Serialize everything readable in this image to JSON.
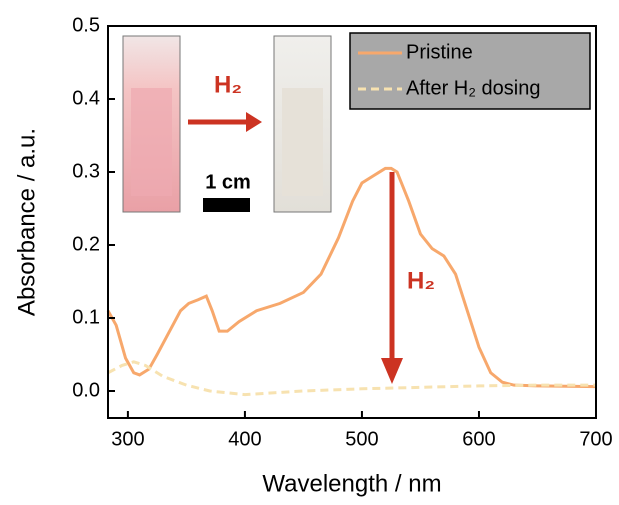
{
  "chart_data": {
    "type": "line",
    "xlabel": "Wavelength / nm",
    "ylabel": "Absorbance / a.u.",
    "xlim": [
      283,
      700
    ],
    "xticks": [
      300,
      400,
      500,
      600,
      700
    ],
    "ylim": [
      -0.037,
      0.5
    ],
    "yticks": [
      {
        "value": 0,
        "label": "0.0"
      },
      {
        "value": 0.1,
        "label": "0.1"
      },
      {
        "value": 0.2,
        "label": "0.2"
      },
      {
        "value": 0.3,
        "label": "0.3"
      },
      {
        "value": 0.4,
        "label": "0.4"
      },
      {
        "value": 0.5,
        "label": "0.5"
      }
    ],
    "legend": "upper right",
    "annotations": [
      "H₂",
      "1 cm",
      "H₂"
    ],
    "series": [
      {
        "name": "Pristine",
        "color": "#f7a86c",
        "style": "solid",
        "x": [
          283,
          290,
          298,
          305,
          310,
          318,
          325,
          335,
          345,
          352,
          360,
          367,
          372,
          378,
          385,
          395,
          410,
          430,
          450,
          465,
          480,
          492,
          500,
          510,
          520,
          525,
          530,
          540,
          550,
          560,
          570,
          580,
          590,
          600,
          610,
          620,
          630,
          650,
          700
        ],
        "values": [
          0.11,
          0.09,
          0.045,
          0.025,
          0.022,
          0.03,
          0.05,
          0.08,
          0.11,
          0.12,
          0.125,
          0.13,
          0.11,
          0.082,
          0.082,
          0.095,
          0.11,
          0.12,
          0.135,
          0.16,
          0.21,
          0.26,
          0.285,
          0.295,
          0.305,
          0.305,
          0.3,
          0.26,
          0.215,
          0.195,
          0.185,
          0.16,
          0.11,
          0.06,
          0.025,
          0.012,
          0.008,
          0.007,
          0.006
        ]
      },
      {
        "name": "After H₂ dosing",
        "color": "#f7e2b0",
        "style": "dashed",
        "x": [
          283,
          295,
          305,
          315,
          330,
          350,
          370,
          400,
          450,
          500,
          550,
          600,
          650,
          700
        ],
        "values": [
          0.025,
          0.035,
          0.04,
          0.035,
          0.02,
          0.008,
          0,
          -0.005,
          0,
          0.003,
          0.005,
          0.007,
          0.008,
          0.008
        ]
      }
    ]
  }
}
